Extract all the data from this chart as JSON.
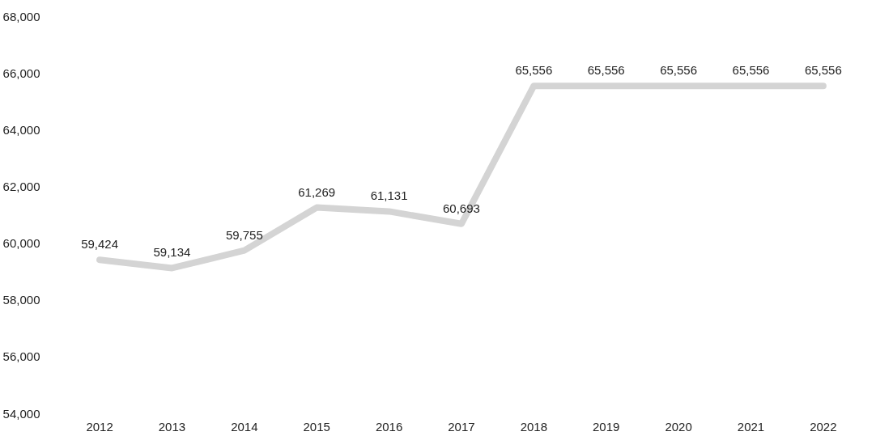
{
  "chart_data": {
    "type": "line",
    "categories": [
      "2012",
      "2013",
      "2014",
      "2015",
      "2016",
      "2017",
      "2018",
      "2019",
      "2020",
      "2021",
      "2022"
    ],
    "values": [
      59424,
      59134,
      59755,
      61269,
      61131,
      60693,
      65556,
      65556,
      65556,
      65556,
      65556
    ],
    "value_labels": [
      "59,424",
      "59,134",
      "59,755",
      "61,269",
      "61,131",
      "60,693",
      "65,556",
      "65,556",
      "65,556",
      "65,556",
      "65,556"
    ],
    "color": "#d4d4d4",
    "ylim": [
      54000,
      68000
    ],
    "yticks": [
      {
        "value": 54000,
        "label": "54,000"
      },
      {
        "value": 56000,
        "label": "56,000"
      },
      {
        "value": 58000,
        "label": "58,000"
      },
      {
        "value": 60000,
        "label": "60,000"
      },
      {
        "value": 62000,
        "label": "62,000"
      },
      {
        "value": 64000,
        "label": "64,000"
      },
      {
        "value": 66000,
        "label": "66,000"
      },
      {
        "value": 68000,
        "label": "68,000"
      }
    ],
    "grid": false,
    "marker": "none",
    "line_style": "solid"
  }
}
